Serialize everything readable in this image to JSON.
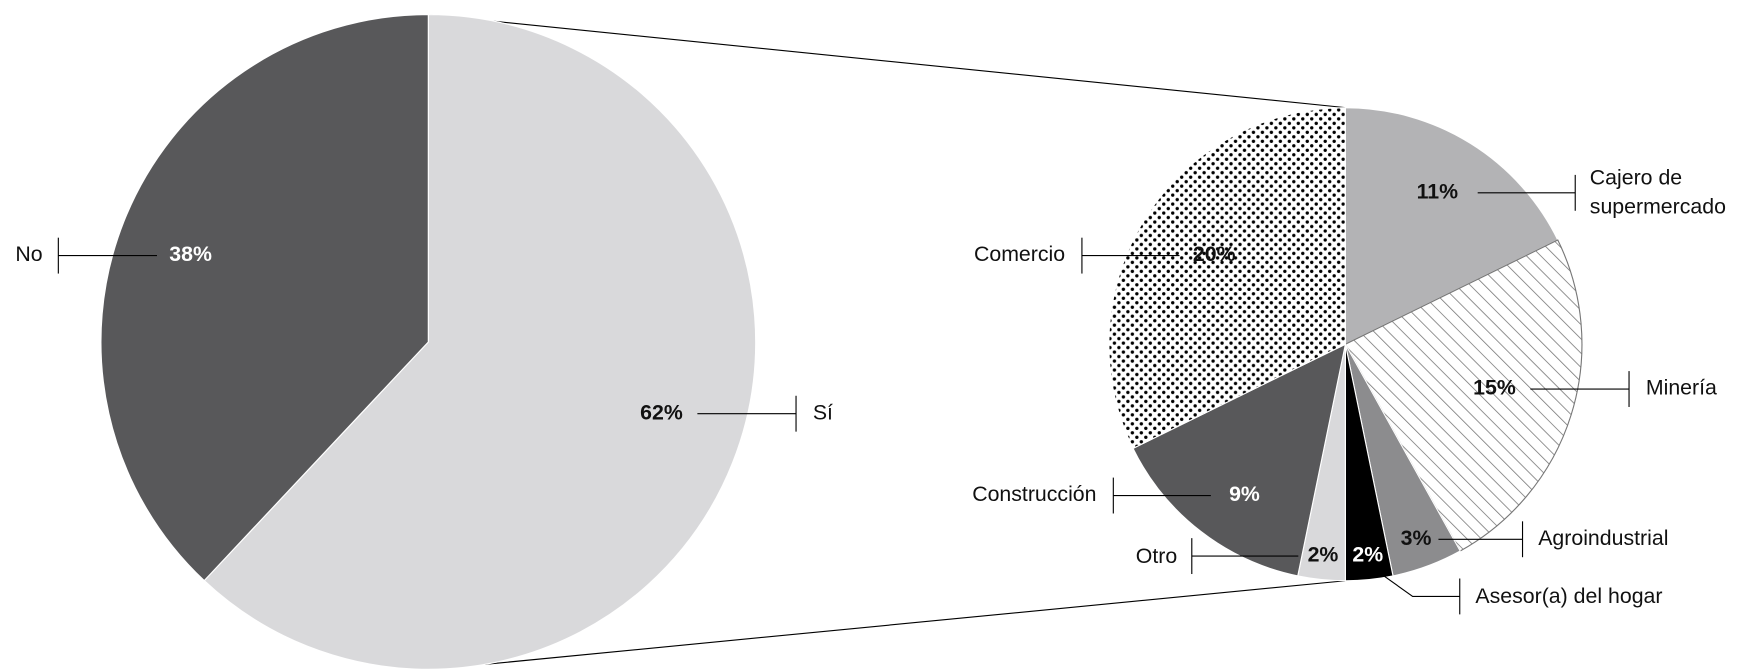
{
  "chart_data": [
    {
      "type": "pie",
      "categories": [
        "Sí",
        "No"
      ],
      "values": [
        62,
        38
      ],
      "value_labels": [
        "62%",
        "38%"
      ],
      "colors": [
        "#d9d9db",
        "#58585a"
      ]
    },
    {
      "type": "pie",
      "categories": [
        "Cajero de supermercado",
        "Minería",
        "Agroindustrial",
        "Asesor(a) del hogar",
        "Otro",
        "Construcción",
        "Comercio"
      ],
      "values": [
        11,
        15,
        3,
        2,
        2,
        9,
        20
      ],
      "value_labels": [
        "11%",
        "15%",
        "3%",
        "2%",
        "2%",
        "9%",
        "20%"
      ],
      "colors": [
        "#b3b3b5",
        "#ffffff",
        "#8c8c8e",
        "#000000",
        "#d9d9db",
        "#58585a",
        "#ffffff"
      ],
      "patterns": [
        null,
        "hatch",
        null,
        null,
        null,
        null,
        "dots"
      ]
    }
  ]
}
